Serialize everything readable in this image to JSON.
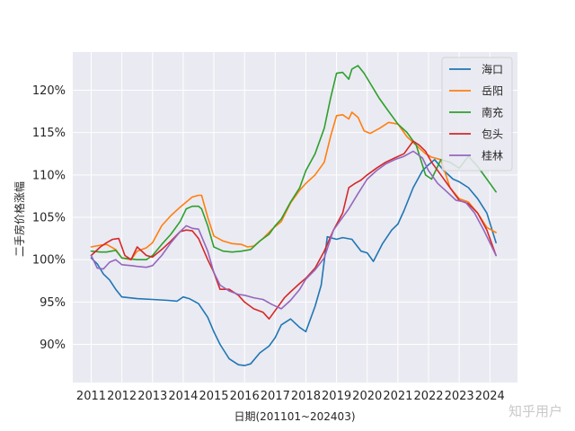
{
  "chart_data": {
    "type": "line",
    "title": "",
    "xlabel": "日期(201101~202403)",
    "ylabel": "二手房价格涨幅",
    "xlim": [
      2010.4,
      2024.9
    ],
    "ylim": [
      85.5,
      124.5
    ],
    "x_ticks": [
      2011,
      2012,
      2013,
      2014,
      2015,
      2016,
      2017,
      2018,
      2019,
      2020,
      2021,
      2022,
      2023,
      2024
    ],
    "y_ticks": [
      90,
      95,
      100,
      105,
      110,
      115,
      120
    ],
    "y_tick_suffix": "%",
    "grid": true,
    "legend_position": "top-right",
    "series": [
      {
        "name": "海口",
        "color": "#1f77b4",
        "x": [
          2011.0,
          2011.2,
          2011.4,
          2011.6,
          2011.8,
          2012.0,
          2012.5,
          2013.0,
          2013.5,
          2013.8,
          2014.0,
          2014.2,
          2014.5,
          2014.8,
          2015.0,
          2015.2,
          2015.5,
          2015.8,
          2016.0,
          2016.2,
          2016.5,
          2016.8,
          2017.0,
          2017.2,
          2017.5,
          2017.8,
          2018.0,
          2018.3,
          2018.5,
          2018.7,
          2019.0,
          2019.2,
          2019.5,
          2019.8,
          2020.0,
          2020.2,
          2020.5,
          2020.8,
          2021.0,
          2021.2,
          2021.5,
          2021.8,
          2022.0,
          2022.2,
          2022.5,
          2022.8,
          2023.0,
          2023.3,
          2023.6,
          2023.9,
          2024.2
        ],
        "values": [
          100.2,
          99.5,
          98.3,
          97.6,
          96.5,
          95.6,
          95.4,
          95.3,
          95.2,
          95.1,
          95.6,
          95.4,
          94.8,
          93.2,
          91.5,
          90.0,
          88.3,
          87.6,
          87.5,
          87.7,
          89.0,
          89.8,
          90.8,
          92.3,
          93.0,
          92.0,
          91.5,
          94.5,
          97.0,
          102.7,
          102.4,
          102.6,
          102.4,
          101.0,
          100.8,
          99.8,
          101.9,
          103.5,
          104.2,
          105.8,
          108.5,
          110.5,
          111.2,
          111.8,
          110.5,
          109.5,
          109.2,
          108.5,
          107.2,
          105.5,
          102.0
        ]
      },
      {
        "name": "岳阳",
        "color": "#ff7f0e",
        "x": [
          2011.0,
          2011.3,
          2011.5,
          2011.8,
          2012.0,
          2012.3,
          2012.5,
          2012.8,
          2013.0,
          2013.3,
          2013.6,
          2013.9,
          2014.1,
          2014.3,
          2014.5,
          2014.6,
          2014.8,
          2015.0,
          2015.3,
          2015.6,
          2015.9,
          2016.1,
          2016.3,
          2016.6,
          2016.9,
          2017.2,
          2017.5,
          2017.8,
          2018.0,
          2018.3,
          2018.6,
          2018.8,
          2019.0,
          2019.2,
          2019.4,
          2019.5,
          2019.7,
          2019.9,
          2020.1,
          2020.4,
          2020.7,
          2021.0,
          2021.3,
          2021.6,
          2021.9,
          2022.1,
          2022.4,
          2022.7,
          2023.0,
          2023.3,
          2023.6,
          2023.9,
          2024.2
        ],
        "values": [
          101.5,
          101.7,
          101.8,
          101.2,
          100.2,
          100.0,
          101.0,
          101.4,
          102.0,
          104.0,
          105.2,
          106.2,
          106.8,
          107.4,
          107.6,
          107.6,
          105.0,
          102.8,
          102.2,
          101.9,
          101.8,
          101.5,
          101.6,
          102.5,
          103.6,
          104.5,
          106.7,
          108.2,
          109.0,
          110.0,
          111.5,
          114.5,
          117.0,
          117.1,
          116.6,
          117.4,
          116.8,
          115.2,
          114.9,
          115.5,
          116.2,
          116.0,
          114.5,
          113.5,
          112.5,
          112.1,
          111.8,
          108.5,
          107.2,
          106.8,
          105.5,
          103.8,
          103.2
        ]
      },
      {
        "name": "南充",
        "color": "#2ca02c",
        "x": [
          2011.0,
          2011.3,
          2011.5,
          2011.8,
          2012.0,
          2012.5,
          2012.8,
          2013.0,
          2013.3,
          2013.6,
          2013.9,
          2014.1,
          2014.3,
          2014.5,
          2014.6,
          2014.8,
          2015.0,
          2015.3,
          2015.6,
          2015.9,
          2016.2,
          2016.5,
          2016.8,
          2017.0,
          2017.2,
          2017.5,
          2017.8,
          2018.0,
          2018.3,
          2018.6,
          2018.8,
          2019.0,
          2019.2,
          2019.4,
          2019.5,
          2019.7,
          2019.9,
          2020.1,
          2020.4,
          2020.7,
          2021.0,
          2021.3,
          2021.6,
          2021.9,
          2022.1,
          2022.4,
          2022.7,
          2023.0,
          2023.3,
          2023.6,
          2023.9,
          2024.2
        ],
        "values": [
          101.0,
          100.9,
          100.9,
          101.1,
          100.2,
          100.0,
          100.0,
          100.5,
          101.8,
          103.0,
          104.5,
          106.0,
          106.3,
          106.3,
          106.0,
          104.0,
          101.5,
          101.0,
          100.9,
          101.0,
          101.2,
          102.2,
          103.0,
          104.0,
          104.8,
          106.8,
          108.5,
          110.5,
          112.5,
          115.5,
          119.0,
          122.0,
          122.1,
          121.3,
          122.5,
          122.9,
          122.0,
          120.8,
          119.0,
          117.5,
          116.0,
          115.0,
          113.5,
          110.0,
          109.5,
          111.8,
          111.5,
          110.8,
          112.2,
          111.0,
          109.5,
          108.0
        ]
      },
      {
        "name": "包头",
        "color": "#d62728",
        "x": [
          2011.0,
          2011.3,
          2011.5,
          2011.7,
          2011.9,
          2012.1,
          2012.3,
          2012.5,
          2012.8,
          2013.0,
          2013.3,
          2013.6,
          2013.9,
          2014.1,
          2014.3,
          2014.5,
          2014.8,
          2015.0,
          2015.2,
          2015.5,
          2015.8,
          2016.0,
          2016.3,
          2016.6,
          2016.8,
          2017.0,
          2017.3,
          2017.5,
          2017.8,
          2018.0,
          2018.3,
          2018.6,
          2018.9,
          2019.2,
          2019.4,
          2019.6,
          2019.8,
          2020.0,
          2020.3,
          2020.6,
          2020.9,
          2021.2,
          2021.5,
          2021.7,
          2021.9,
          2022.1,
          2022.4,
          2022.7,
          2023.0,
          2023.3,
          2023.6,
          2023.9,
          2024.2
        ],
        "values": [
          100.5,
          101.5,
          102.0,
          102.4,
          102.5,
          100.5,
          100.0,
          101.5,
          100.5,
          100.3,
          101.2,
          102.2,
          103.3,
          103.5,
          103.4,
          102.5,
          100.0,
          98.5,
          96.5,
          96.5,
          95.8,
          95.0,
          94.2,
          93.8,
          93.0,
          94.0,
          95.5,
          96.2,
          97.2,
          97.8,
          99.0,
          101.0,
          103.5,
          105.5,
          108.5,
          109.0,
          109.4,
          110.0,
          110.8,
          111.5,
          112.0,
          112.5,
          114.0,
          113.5,
          112.8,
          111.5,
          110.0,
          108.5,
          107.0,
          106.6,
          105.5,
          103.5,
          100.5
        ]
      },
      {
        "name": "桂林",
        "color": "#9467bd",
        "x": [
          2011.0,
          2011.2,
          2011.4,
          2011.6,
          2011.8,
          2012.0,
          2012.3,
          2012.5,
          2012.8,
          2013.0,
          2013.3,
          2013.6,
          2013.9,
          2014.1,
          2014.3,
          2014.5,
          2014.8,
          2015.0,
          2015.2,
          2015.5,
          2015.8,
          2016.0,
          2016.3,
          2016.6,
          2016.9,
          2017.2,
          2017.5,
          2017.8,
          2018.0,
          2018.3,
          2018.6,
          2018.9,
          2019.1,
          2019.4,
          2019.7,
          2020.0,
          2020.3,
          2020.6,
          2020.9,
          2021.2,
          2021.5,
          2021.8,
          2022.0,
          2022.3,
          2022.6,
          2022.9,
          2023.2,
          2023.5,
          2023.8,
          2024.2
        ],
        "values": [
          100.5,
          99.0,
          98.9,
          99.7,
          100.0,
          99.4,
          99.3,
          99.2,
          99.1,
          99.3,
          100.5,
          102.0,
          103.3,
          104.0,
          103.7,
          103.6,
          101.0,
          98.5,
          97.0,
          96.3,
          95.9,
          95.8,
          95.5,
          95.3,
          94.7,
          94.2,
          95.2,
          96.5,
          97.7,
          98.8,
          100.2,
          103.5,
          104.5,
          106.0,
          107.8,
          109.5,
          110.5,
          111.3,
          111.8,
          112.2,
          112.8,
          112.0,
          110.5,
          109.0,
          108.0,
          107.0,
          106.8,
          105.5,
          103.5,
          100.5
        ]
      }
    ]
  },
  "watermark": "知乎用户"
}
